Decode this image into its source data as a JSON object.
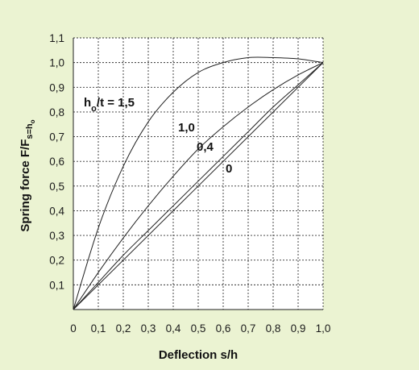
{
  "chart_data": {
    "type": "line",
    "title": "",
    "xlabel": "Deflection s/h",
    "ylabel": "Spring force F/F",
    "ylabel_sub": "s=h",
    "ylabel_sub2": "o",
    "xlim": [
      0,
      1.0
    ],
    "ylim": [
      0,
      1.1
    ],
    "x_ticks": [
      "0",
      "0,1",
      "0,2",
      "0,3",
      "0,4",
      "0,5",
      "0,6",
      "0,7",
      "0,8",
      "0,9",
      "1,0"
    ],
    "y_ticks": [
      "0,1",
      "0,2",
      "0,3",
      "0,4",
      "0,5",
      "0,6",
      "0,7",
      "0,8",
      "0,9",
      "1,0",
      "1,1"
    ],
    "grid": true,
    "series": [
      {
        "label_parts": [
          "h",
          "o",
          "/t = 1,5"
        ],
        "x": [
          0,
          0.1,
          0.2,
          0.3,
          0.4,
          0.5,
          0.6,
          0.7,
          0.8,
          0.9,
          1.0
        ],
        "y": [
          0,
          0.33,
          0.58,
          0.76,
          0.88,
          0.96,
          1.0,
          1.02,
          1.02,
          1.015,
          1.0
        ]
      },
      {
        "label": "1,0",
        "x": [
          0,
          0.1,
          0.2,
          0.3,
          0.4,
          0.5,
          0.6,
          0.7,
          0.8,
          0.9,
          1.0
        ],
        "y": [
          0,
          0.15,
          0.29,
          0.42,
          0.54,
          0.65,
          0.74,
          0.82,
          0.89,
          0.95,
          1.0
        ]
      },
      {
        "label": "0,4",
        "x": [
          0,
          0.1,
          0.2,
          0.3,
          0.4,
          0.5,
          0.6,
          0.7,
          0.8,
          0.9,
          1.0
        ],
        "y": [
          0,
          0.11,
          0.22,
          0.32,
          0.42,
          0.52,
          0.62,
          0.72,
          0.82,
          0.91,
          1.0
        ]
      },
      {
        "label": "0",
        "x": [
          0,
          1.0
        ],
        "y": [
          0,
          1.0
        ]
      }
    ]
  }
}
